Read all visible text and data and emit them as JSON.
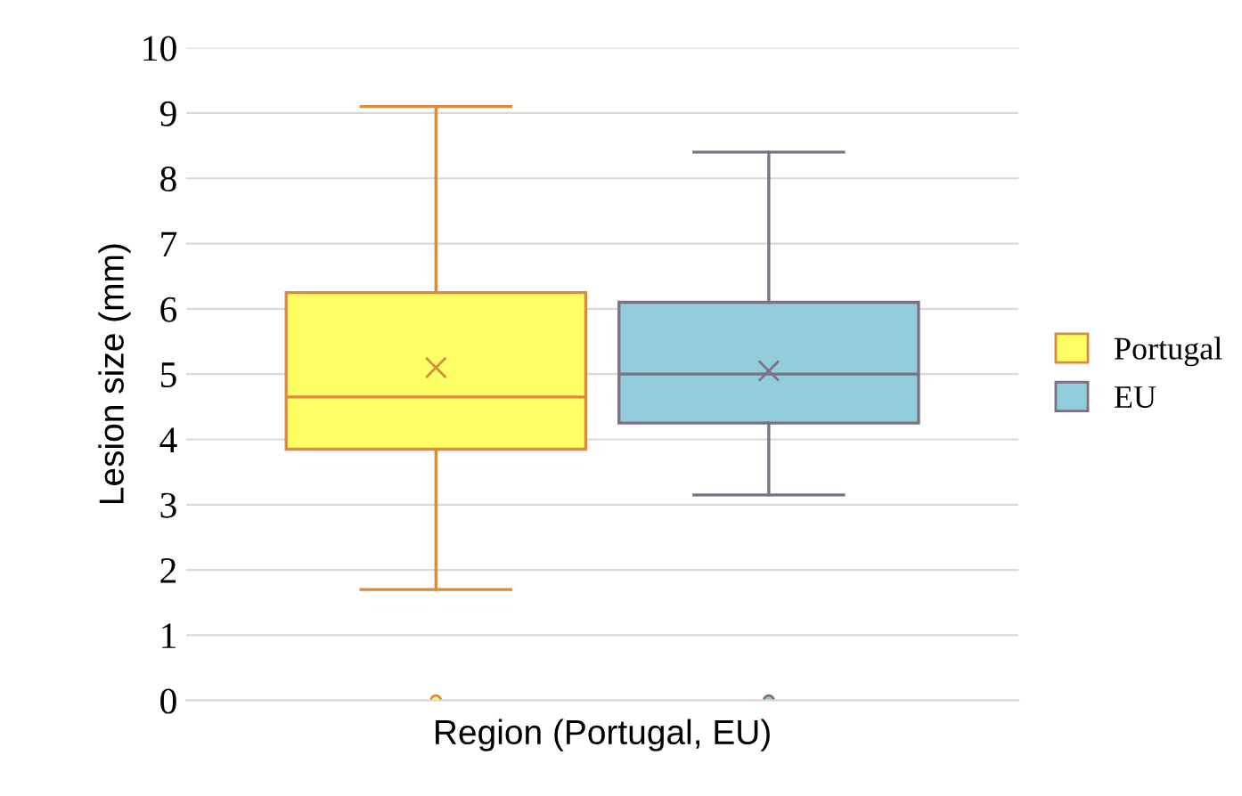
{
  "chart_data": {
    "type": "box",
    "ylabel": "Lesion size (mm)",
    "xlabel": "Region (Portugal, EU)",
    "categories": [
      null
    ],
    "series": [
      {
        "name": "Portugal",
        "color": "#ffff66",
        "boxes": [
          {
            "low": 1.7,
            "q1": 3.85,
            "median": 4.65,
            "q3": 6.25,
            "high": 9.1,
            "mean": 5.1,
            "outliers": [
              0
            ]
          }
        ]
      },
      {
        "name": "EU",
        "color": "#92cddc",
        "boxes": [
          {
            "low": 3.15,
            "q1": 4.25,
            "median": 5.0,
            "q3": 6.1,
            "high": 8.4,
            "mean": 5.05,
            "outliers": [
              0
            ]
          }
        ]
      }
    ],
    "ylim": [
      0,
      10
    ],
    "yticks": [
      0,
      1,
      2,
      3,
      4,
      5,
      6,
      7,
      8,
      9,
      10
    ],
    "grid": "y",
    "legend": "right"
  }
}
